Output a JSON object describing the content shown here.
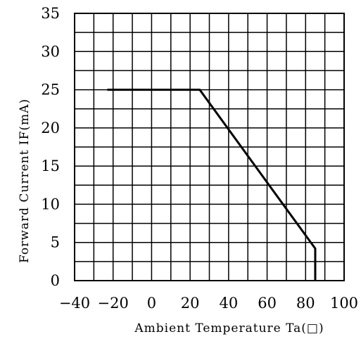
{
  "chart_data": {
    "type": "line",
    "xlabel": "Ambient Temperature Ta(□)",
    "ylabel": "Forward Current IF(mA)",
    "xlim": [
      -40,
      100
    ],
    "ylim": [
      0,
      35
    ],
    "x_ticks": [
      "−40",
      "−20",
      "0",
      "20",
      "40",
      "60",
      "80",
      "100"
    ],
    "y_ticks": [
      "0",
      "5",
      "10",
      "15",
      "20",
      "25",
      "30",
      "35"
    ],
    "x_tick_values": [
      -40,
      -20,
      0,
      20,
      40,
      60,
      80,
      100
    ],
    "y_tick_values": [
      0,
      5,
      10,
      15,
      20,
      25,
      30,
      35
    ],
    "grid": true,
    "grid_step_x": 10,
    "grid_step_y": 2.5,
    "series": [
      {
        "x": [
          -23,
          25,
          85,
          85
        ],
        "y": [
          25,
          25,
          4.2,
          0
        ]
      }
    ]
  },
  "colors": {
    "line": "#000000",
    "grid": "#000000",
    "background": "#ffffff"
  }
}
